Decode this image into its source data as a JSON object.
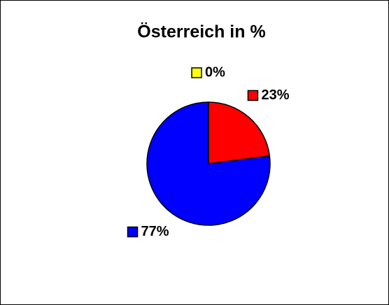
{
  "chart_data": {
    "type": "pie",
    "title": "Österreich in %",
    "values": [
      0,
      23,
      77
    ],
    "value_labels": [
      "0%",
      "23%",
      "77%"
    ],
    "colors": [
      "#ffff00",
      "#ff0000",
      "#0000ff"
    ]
  }
}
